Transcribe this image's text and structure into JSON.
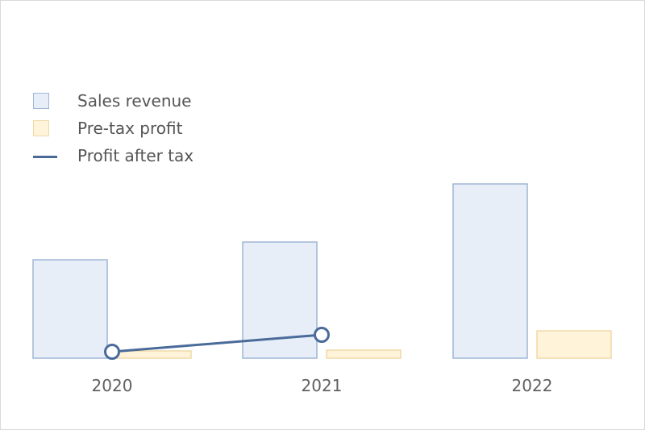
{
  "chart_data": {
    "type": "bar",
    "categories": [
      "2020",
      "2021",
      "2022"
    ],
    "series": [
      {
        "name": "Sales revenue",
        "kind": "bar",
        "values": [
          122,
          144,
          216
        ],
        "fill": "#e8eef8",
        "stroke": "#9fb6d6"
      },
      {
        "name": "Pre-tax profit",
        "kind": "bar",
        "values": [
          9,
          10,
          34
        ],
        "fill": "#fff3d9",
        "stroke": "#f0d9a8"
      },
      {
        "name": "Profit after tax",
        "kind": "line",
        "values": [
          8,
          29,
          null
        ],
        "stroke": "#4a6b9a"
      }
    ],
    "title": "",
    "xlabel": "",
    "ylabel": "",
    "ylim": [
      0,
      260
    ],
    "grid": false,
    "legend_position": "top-left"
  }
}
